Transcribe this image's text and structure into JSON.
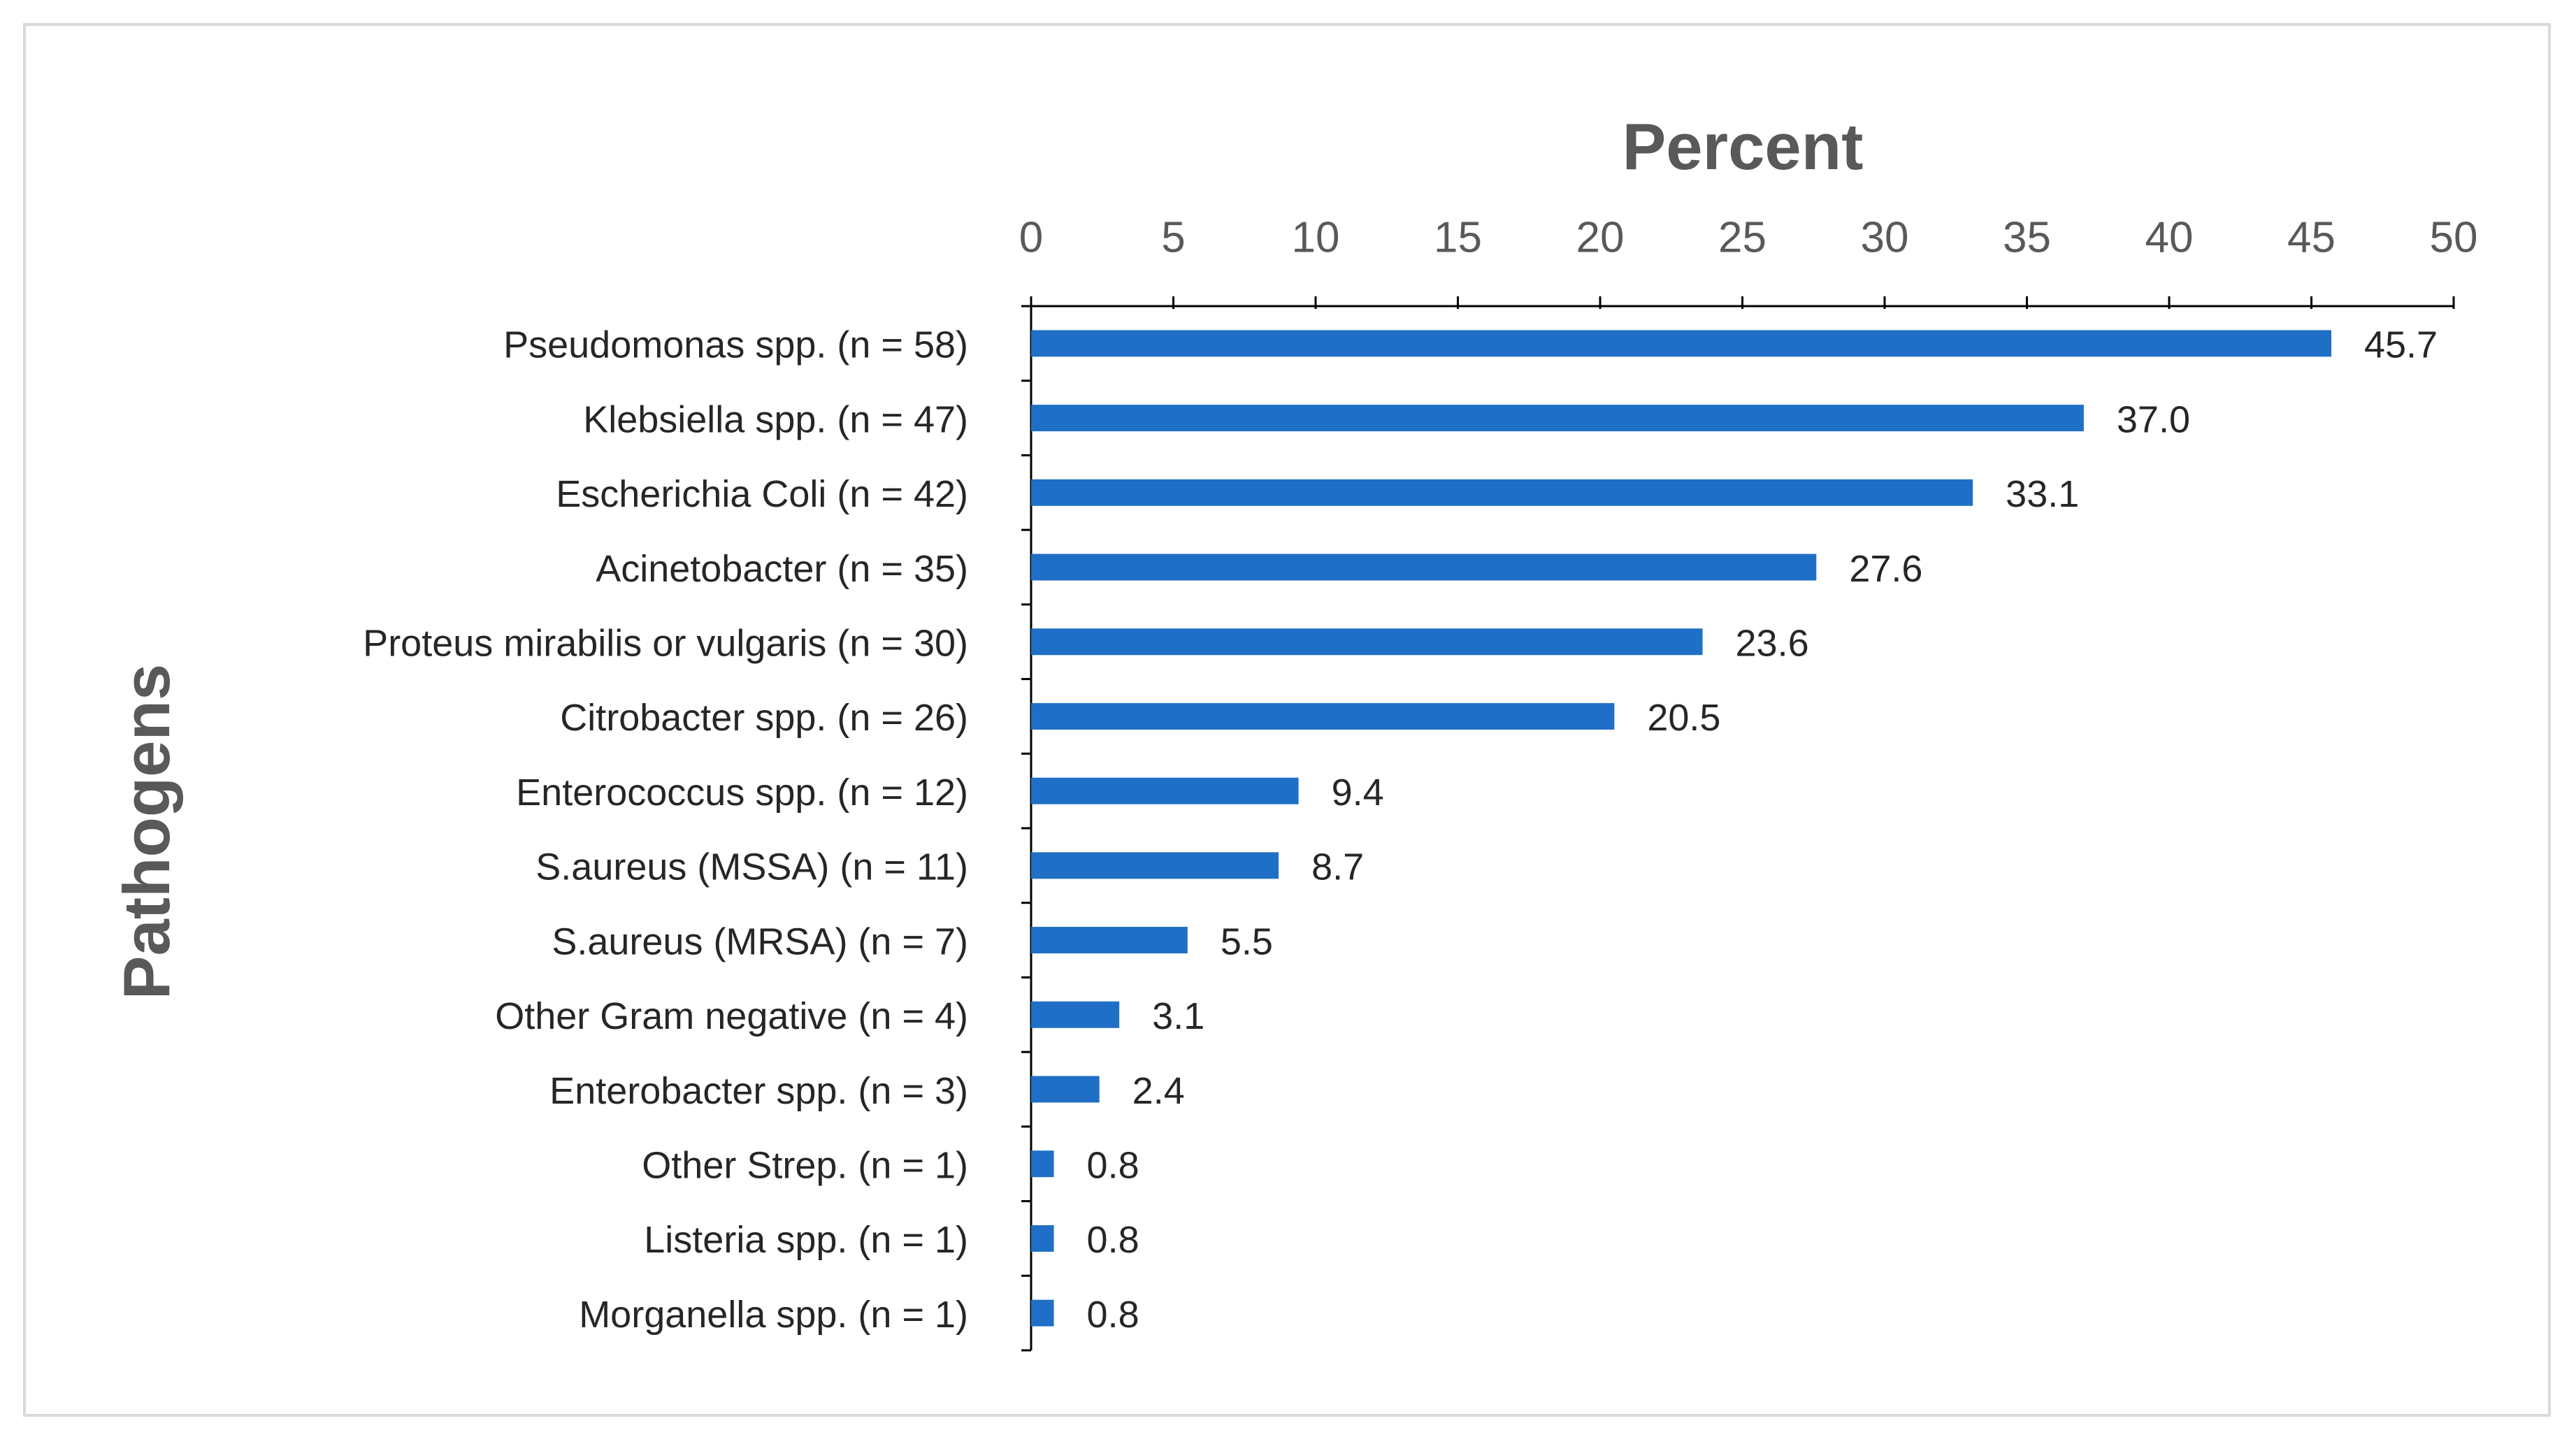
{
  "chart_data": {
    "type": "bar",
    "orientation": "horizontal",
    "title": "Percent",
    "y_label": "Pathogens",
    "categories": [
      "Pseudomonas spp. (n = 58)",
      "Klebsiella spp. (n = 47)",
      "Escherichia Coli (n = 42)",
      "Acinetobacter (n = 35)",
      "Proteus mirabilis or vulgaris (n = 30)",
      "Citrobacter spp. (n = 26)",
      "Enterococcus spp. (n = 12)",
      "S.aureus (MSSA) (n = 11)",
      "S.aureus (MRSA) (n = 7)",
      "Other Gram negative (n = 4)",
      "Enterobacter spp. (n = 3)",
      "Other Strep. (n = 1)",
      "Listeria spp. (n = 1)",
      "Morganella spp. (n = 1)"
    ],
    "values": [
      45.7,
      37.0,
      33.1,
      27.6,
      23.6,
      20.5,
      9.4,
      8.7,
      5.5,
      3.1,
      2.4,
      0.8,
      0.8,
      0.8
    ],
    "value_labels": [
      "45.7",
      "37.0",
      "33.1",
      "27.6",
      "23.6",
      "20.5",
      "9.4",
      "8.7",
      "5.5",
      "3.1",
      "2.4",
      "0.8",
      "0.8",
      "0.8"
    ],
    "color": "#1f6fc6",
    "xlim": [
      0,
      50
    ],
    "xticks": [
      0,
      5,
      10,
      15,
      20,
      25,
      30,
      35,
      40,
      45,
      50
    ],
    "grid": false
  }
}
